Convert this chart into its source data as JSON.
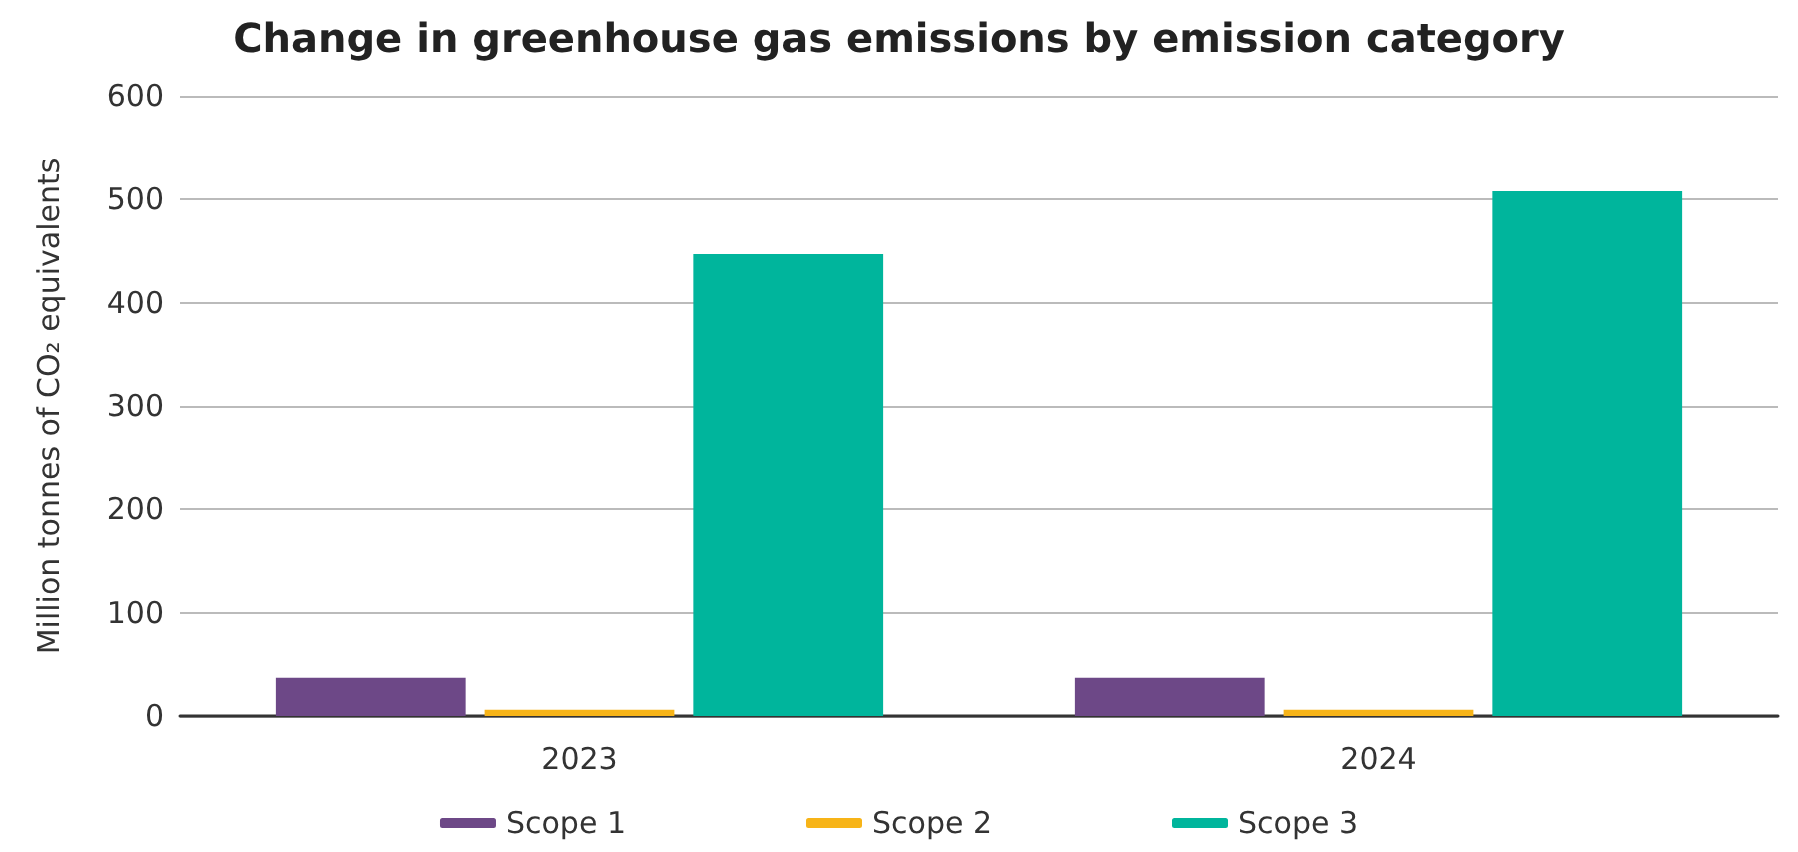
{
  "chart_data": {
    "type": "bar",
    "title": "Change in greenhouse gas emissions by emission category",
    "ylabel": "Million tonnes of CO₂ equivalents",
    "categories": [
      "2023",
      "2024"
    ],
    "series": [
      {
        "name": "Scope 1",
        "color": "#6d4887",
        "values": [
          37,
          37
        ]
      },
      {
        "name": "Scope 2",
        "color": "#f7b418",
        "values": [
          6,
          6
        ]
      },
      {
        "name": "Scope 3",
        "color": "#00b59c",
        "values": [
          447,
          508
        ]
      }
    ],
    "ylim": [
      0,
      600
    ],
    "yticks": [
      0,
      100,
      200,
      300,
      400,
      500,
      600
    ],
    "grid": "y",
    "legend": "bottom"
  }
}
